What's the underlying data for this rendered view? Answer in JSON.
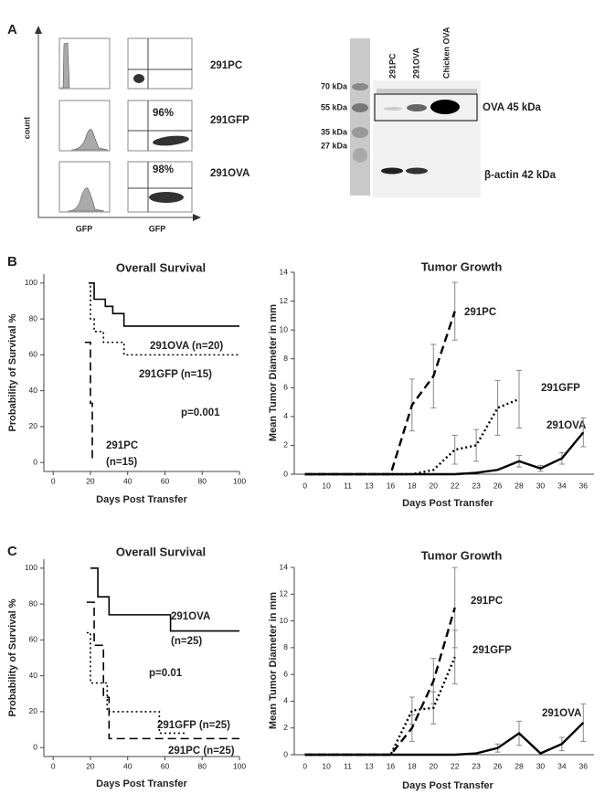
{
  "panel_labels": [
    "A",
    "B",
    "C"
  ],
  "flow": {
    "ylabel": "count",
    "xlabels": [
      "GFP",
      "GFP"
    ],
    "rows": [
      "291PC",
      "291GFP",
      "291OVA"
    ],
    "percents": [
      "96%",
      "98%"
    ]
  },
  "blot": {
    "lanes": [
      "291PC",
      "291OVA",
      "Chicken OVA"
    ],
    "markers": [
      "70 kDa",
      "55 kDa",
      "35 kDa",
      "27 kDa"
    ],
    "bands": [
      "OVA 45 kDa",
      "β-actin 42 kDa"
    ]
  },
  "chart_data": [
    {
      "type": "step",
      "title": "Overall Survival",
      "xlabel": "Days Post Transfer",
      "ylabel": "Probability of Survival %",
      "xlim": [
        -5,
        100
      ],
      "xticks": [
        0,
        20,
        40,
        60,
        80,
        100
      ],
      "ylim": [
        -5,
        105
      ],
      "yticks": [
        0,
        20,
        40,
        60,
        80,
        100
      ],
      "series": [
        {
          "color": "#000000",
          "dash": "solid",
          "x": [
            20,
            22,
            28,
            32,
            38,
            100
          ],
          "values": [
            100,
            91,
            87,
            83,
            76,
            76
          ]
        },
        {
          "color": "#000000",
          "dash": "dotted",
          "x": [
            19,
            20,
            22,
            27,
            38,
            100
          ],
          "values": [
            100,
            80,
            73,
            67,
            60,
            60
          ]
        },
        {
          "color": "#000000",
          "dash": "dashed",
          "x": [
            17,
            20,
            21
          ],
          "values": [
            67,
            33,
            0
          ]
        }
      ],
      "annotations": [
        "291OVA (n=20)",
        "291GFP (n=15)",
        "p=0.001",
        "291PC",
        "(n=15)"
      ]
    },
    {
      "type": "line",
      "title": "Tumor Growth",
      "xlabel": "Days Post Transfer",
      "ylabel": "Mean Tumor Diameter in mm",
      "categories": [
        "0",
        "10",
        "11",
        "13",
        "16",
        "18",
        "20",
        "22",
        "23",
        "26",
        "28",
        "30",
        "34",
        "36"
      ],
      "ylim": [
        0,
        14
      ],
      "yticks": [
        0,
        2,
        4,
        6,
        8,
        10,
        12,
        14
      ],
      "error_color": "#888888",
      "series": [
        {
          "color": "#000000",
          "dash": "dashed",
          "values": [
            0,
            0,
            0,
            0,
            0,
            4.8,
            6.8,
            11.3,
            null,
            null,
            null,
            null,
            null,
            null
          ],
          "errors": [
            null,
            null,
            null,
            null,
            null,
            1.8,
            2.2,
            2.0,
            null,
            null,
            null,
            null,
            null,
            null
          ]
        },
        {
          "color": "#000000",
          "dash": "dotted",
          "values": [
            0,
            0,
            0,
            0,
            0,
            0,
            0.3,
            1.7,
            2.0,
            4.6,
            5.2,
            null,
            null,
            null
          ],
          "errors": [
            null,
            null,
            null,
            null,
            null,
            null,
            null,
            1.0,
            1.1,
            1.9,
            2.0,
            null,
            null,
            null
          ]
        },
        {
          "color": "#000000",
          "dash": "solid",
          "values": [
            0,
            0,
            0,
            0,
            0,
            0,
            0,
            0,
            0.1,
            0.3,
            0.9,
            0.4,
            1.1,
            2.9
          ],
          "errors": [
            null,
            null,
            null,
            null,
            null,
            null,
            null,
            null,
            null,
            null,
            0.4,
            0.2,
            0.4,
            1.0
          ]
        }
      ],
      "annotations": [
        "291PC",
        "291GFP",
        "291OVA"
      ]
    },
    {
      "type": "step",
      "title": "Overall Survival",
      "xlabel": "Days Post Transfer",
      "ylabel": "Probability of Survival %",
      "xlim": [
        -5,
        100
      ],
      "xticks": [
        0,
        20,
        40,
        60,
        80,
        100
      ],
      "ylim": [
        -5,
        105
      ],
      "yticks": [
        0,
        20,
        40,
        60,
        80,
        100
      ],
      "series": [
        {
          "color": "#000000",
          "dash": "solid",
          "x": [
            20,
            24,
            30,
            63,
            100
          ],
          "values": [
            100,
            84,
            74,
            65,
            65
          ]
        },
        {
          "color": "#000000",
          "dash": "dotted",
          "x": [
            18,
            20,
            29,
            57,
            72
          ],
          "values": [
            64,
            36,
            20,
            8,
            8
          ]
        },
        {
          "color": "#000000",
          "dash": "dashed",
          "x": [
            18,
            22,
            27,
            30,
            100
          ],
          "values": [
            81,
            57,
            28,
            5,
            5
          ]
        }
      ],
      "annotations": [
        "291OVA",
        "(n=25)",
        "p=0.01",
        "291GFP (n=25)",
        "291PC (n=25)"
      ]
    },
    {
      "type": "line",
      "title": "Tumor Growth",
      "xlabel": "Days Post Transfer",
      "ylabel": "Mean Tumor Diameter in mm",
      "categories": [
        "0",
        "10",
        "11",
        "13",
        "16",
        "18",
        "20",
        "22",
        "23",
        "26",
        "28",
        "30",
        "34",
        "36"
      ],
      "ylim": [
        0,
        14
      ],
      "yticks": [
        0,
        2,
        4,
        6,
        8,
        10,
        12,
        14
      ],
      "error_color": "#888888",
      "series": [
        {
          "color": "#000000",
          "dash": "dashed",
          "values": [
            0,
            0,
            0,
            0,
            0,
            2.0,
            5.5,
            11.0,
            null,
            null,
            null,
            null,
            null,
            null
          ],
          "errors": [
            null,
            null,
            null,
            null,
            null,
            1.0,
            1.7,
            3.0,
            null,
            null,
            null,
            null,
            null,
            null
          ]
        },
        {
          "color": "#000000",
          "dash": "dotted",
          "values": [
            0,
            0,
            0,
            0,
            0,
            3.3,
            3.5,
            7.3,
            null,
            null,
            null,
            null,
            null,
            null
          ],
          "errors": [
            null,
            null,
            null,
            null,
            null,
            1.0,
            1.2,
            2.0,
            null,
            null,
            null,
            null,
            null,
            null
          ]
        },
        {
          "color": "#000000",
          "dash": "solid",
          "values": [
            0,
            0,
            0,
            0,
            0,
            0,
            0,
            0,
            0.1,
            0.5,
            1.6,
            0.1,
            0.8,
            2.4
          ],
          "errors": [
            null,
            null,
            null,
            null,
            null,
            null,
            null,
            null,
            null,
            0.3,
            0.9,
            null,
            0.5,
            1.4
          ]
        }
      ],
      "annotations": [
        "291PC",
        "291GFP",
        "291OVA"
      ]
    }
  ]
}
